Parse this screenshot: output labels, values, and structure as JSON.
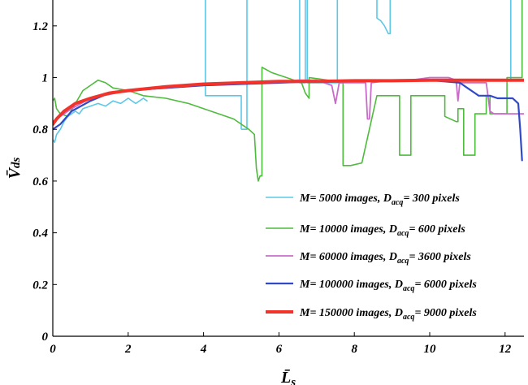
{
  "chart_data": {
    "type": "line",
    "xlabel": "L̄",
    "xlabel_sub": "s",
    "ylabel": "V̄",
    "ylabel_sub": "ds",
    "xlim": [
      0,
      12.5
    ],
    "ylim": [
      0,
      1.3
    ],
    "xticks": [
      0,
      2,
      4,
      6,
      8,
      10,
      12
    ],
    "yticks": [
      0,
      0.2,
      0.4,
      0.6,
      0.8,
      1,
      1.2
    ],
    "ytick_labels": [
      "0",
      "0.2",
      "0.4",
      "0.6",
      "0.8",
      "1",
      "1.2"
    ],
    "xtick_labels": [
      "0",
      "2",
      "4",
      "6",
      "8",
      "10",
      "12"
    ],
    "grid": false,
    "legend_position": "bottom-right",
    "series": [
      {
        "name": "M=5000 images, D_acq=300 pixels",
        "legend": {
          "pre": "M= 5000 images, D",
          "sub": "acq",
          "post": "= 300 pixels"
        },
        "color": "#5cc8e6",
        "width": 1.6,
        "x": [
          0,
          0.05,
          0.1,
          0.2,
          0.3,
          0.4,
          0.5,
          0.6,
          0.7,
          0.8,
          1.0,
          1.2,
          1.4,
          1.6,
          1.8,
          2.0,
          2.2,
          2.4,
          2.5
        ],
        "y": [
          0.76,
          0.75,
          0.78,
          0.8,
          0.83,
          0.85,
          0.86,
          0.87,
          0.86,
          0.88,
          0.89,
          0.9,
          0.89,
          0.91,
          0.9,
          0.92,
          0.9,
          0.92,
          0.91
        ],
        "extra_segments": [
          {
            "x": [
              4.05,
              4.05,
              4.6,
              5.0,
              5.0
            ],
            "y": [
              1.32,
              0.93,
              0.93,
              0.93,
              0.8
            ]
          },
          {
            "x": [
              5.0,
              5.15,
              5.15
            ],
            "y": [
              0.8,
              0.8,
              1.32
            ]
          },
          {
            "x": [
              6.55,
              6.55,
              6.7,
              6.7
            ],
            "y": [
              1.32,
              0.98,
              0.98,
              1.32
            ]
          },
          {
            "x": [
              6.75,
              6.75,
              7.55,
              7.55
            ],
            "y": [
              1.32,
              0.98,
              0.98,
              1.32
            ]
          },
          {
            "x": [
              8.6,
              8.6,
              8.7,
              8.8,
              8.9,
              8.95,
              8.95
            ],
            "y": [
              1.32,
              1.23,
              1.22,
              1.2,
              1.17,
              1.17,
              1.32
            ]
          },
          {
            "x": [
              12.15,
              12.15
            ],
            "y": [
              1.32,
              0.99
            ]
          }
        ]
      },
      {
        "name": "M=10000 images, D_acq=600 pixels",
        "legend": {
          "pre": "M= 10000 images, D",
          "sub": "acq",
          "post": "= 600 pixels"
        },
        "color": "#4dbb3b",
        "width": 1.6,
        "x": [
          0,
          0.05,
          0.1,
          0.2,
          0.4,
          0.6,
          0.8,
          1.0,
          1.2,
          1.4,
          1.6,
          2.0,
          2.4,
          3.0,
          3.6,
          4.0,
          4.4,
          4.8,
          5.0,
          5.2,
          5.35,
          5.4,
          5.45,
          5.5,
          5.55,
          5.55,
          5.8,
          6.2,
          6.6,
          6.7,
          6.75,
          6.8,
          6.8,
          7.3,
          7.6,
          7.7,
          7.7,
          7.9,
          8.2,
          8.6,
          9.0,
          9.2,
          9.2,
          9.5,
          9.5,
          9.9,
          10.2,
          10.3,
          10.4,
          10.4,
          10.7,
          10.75,
          10.75,
          10.9,
          10.9,
          11.2,
          11.2,
          11.5,
          11.5,
          11.6,
          11.6,
          11.85,
          11.85,
          12.05,
          12.05,
          12.2,
          12.2,
          12.45,
          12.45
        ],
        "y": [
          0.91,
          0.92,
          0.88,
          0.86,
          0.85,
          0.9,
          0.95,
          0.97,
          0.99,
          0.98,
          0.96,
          0.95,
          0.93,
          0.92,
          0.9,
          0.88,
          0.86,
          0.84,
          0.82,
          0.8,
          0.78,
          0.65,
          0.6,
          0.62,
          0.62,
          1.04,
          1.02,
          1.0,
          0.98,
          0.94,
          0.93,
          0.92,
          1.0,
          0.99,
          0.98,
          0.98,
          0.66,
          0.66,
          0.67,
          0.93,
          0.93,
          0.93,
          0.7,
          0.7,
          0.93,
          0.93,
          0.93,
          0.93,
          0.93,
          0.85,
          0.83,
          0.83,
          0.88,
          0.88,
          0.7,
          0.7,
          0.86,
          0.86,
          0.93,
          0.93,
          0.86,
          0.86,
          0.86,
          0.86,
          1.0,
          1.0,
          1.0,
          1.0,
          1.32
        ]
      },
      {
        "name": "M=60000 images, D_acq=3600 pixels",
        "legend": {
          "pre": "M= 60000 images, D",
          "sub": "acq",
          "post": "= 3600 pixels"
        },
        "color": "#c96bc9",
        "width": 1.8,
        "x": [
          0,
          0.2,
          0.5,
          1.0,
          2.0,
          3.0,
          4.0,
          5.0,
          6.0,
          6.5,
          7.0,
          7.4,
          7.5,
          7.6,
          8.0,
          8.3,
          8.35,
          8.4,
          8.45,
          9.0,
          9.5,
          10.0,
          10.5,
          10.7,
          10.75,
          10.8,
          11.2,
          11.5,
          11.6,
          11.7,
          12.0,
          12.5
        ],
        "y": [
          0.83,
          0.85,
          0.88,
          0.92,
          0.95,
          0.96,
          0.97,
          0.975,
          0.98,
          0.99,
          0.99,
          0.97,
          0.9,
          0.98,
          0.98,
          0.98,
          0.84,
          0.84,
          0.98,
          0.99,
          0.99,
          1.0,
          1.0,
          0.99,
          0.91,
          0.98,
          0.98,
          0.98,
          0.87,
          0.86,
          0.86,
          0.86
        ]
      },
      {
        "name": "M=100000 images, D_acq=6000 pixels",
        "legend": {
          "pre": "M= 100000 images, D",
          "sub": "acq",
          "post": "= 6000 pixels"
        },
        "color": "#3049c7",
        "width": 2.2,
        "x": [
          0,
          0.2,
          0.5,
          1.0,
          1.5,
          2.0,
          3.0,
          4.0,
          5.0,
          6.0,
          7.0,
          8.0,
          9.0,
          10.0,
          10.8,
          11.0,
          11.2,
          11.3,
          11.6,
          11.8,
          12.2,
          12.35,
          12.4,
          12.45
        ],
        "y": [
          0.8,
          0.82,
          0.87,
          0.91,
          0.94,
          0.95,
          0.96,
          0.97,
          0.975,
          0.98,
          0.985,
          0.99,
          0.99,
          0.99,
          0.98,
          0.96,
          0.94,
          0.93,
          0.93,
          0.92,
          0.92,
          0.9,
          0.8,
          0.68
        ]
      },
      {
        "name": "M=150000 images, D_acq=9000 pixels",
        "legend": {
          "pre": "M= 150000 images, D",
          "sub": "acq",
          "post": "= 9000 pixels"
        },
        "color": "#f2332c",
        "width": 4,
        "x": [
          0,
          0.1,
          0.3,
          0.6,
          1.0,
          1.5,
          2.0,
          3.0,
          4.0,
          5.0,
          6.0,
          7.0,
          8.0,
          9.0,
          10.0,
          11.0,
          12.0,
          12.5
        ],
        "y": [
          0.82,
          0.84,
          0.87,
          0.9,
          0.92,
          0.94,
          0.95,
          0.965,
          0.975,
          0.98,
          0.985,
          0.985,
          0.988,
          0.988,
          0.99,
          0.99,
          0.99,
          0.99
        ]
      }
    ]
  }
}
